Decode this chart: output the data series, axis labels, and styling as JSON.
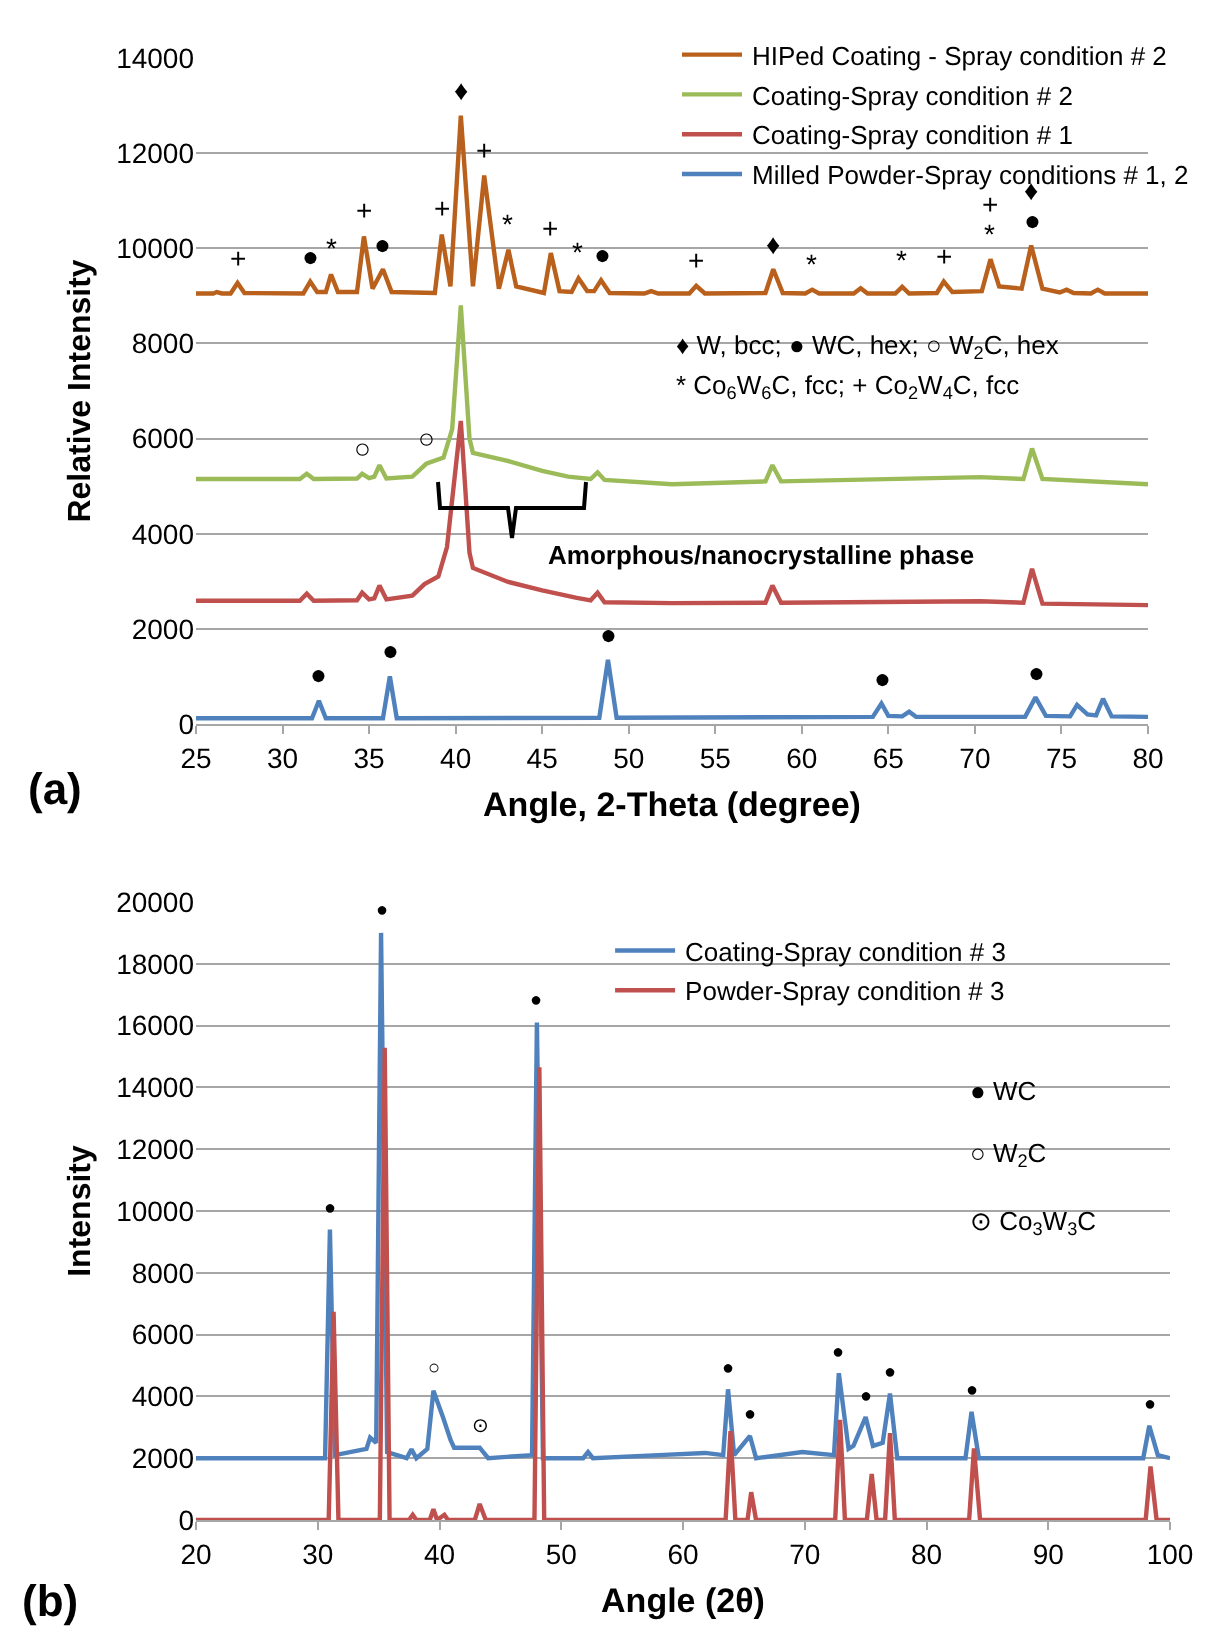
{
  "chart_data": [
    {
      "type": "line",
      "xlabel": "Angle, 2-Theta (degree)",
      "ylabel": "Relative Intensity",
      "xlim": [
        25,
        80
      ],
      "xticks": [
        25,
        30,
        35,
        40,
        45,
        50,
        55,
        60,
        65,
        70,
        75,
        80
      ],
      "ylim": [
        0,
        14000
      ],
      "yticks": [
        0,
        2000,
        4000,
        6000,
        8000,
        10000,
        12000,
        14000
      ],
      "grid": "y",
      "legend": "top right",
      "marker": "none",
      "line_style": "solid",
      "series": [
        {
          "name": "HIPed Coating - Spray condition # 2",
          "color": "#b8601c",
          "x": [
            25,
            26.0,
            26.2,
            26.5,
            27.0,
            27.4,
            27.8,
            31.2,
            31.6,
            32.0,
            32.5,
            32.8,
            33.2,
            34.3,
            34.7,
            35.2,
            35.8,
            36.3,
            38.8,
            39.2,
            39.7,
            40.3,
            41.0,
            41.65,
            42.5,
            43.05,
            43.5,
            45.1,
            45.5,
            46.0,
            46.7,
            47.1,
            47.6,
            48.0,
            48.4,
            48.9,
            50.9,
            51.3,
            51.7,
            53.5,
            53.9,
            54.4,
            57.9,
            58.35,
            58.9,
            60.2,
            60.6,
            61.0,
            63.0,
            63.4,
            63.8,
            65.4,
            65.8,
            66.2,
            67.8,
            68.2,
            68.7,
            70.4,
            70.9,
            71.4,
            72.7,
            73.25,
            73.9,
            74.9,
            75.3,
            75.7,
            76.7,
            77.1,
            77.5,
            80
          ],
          "values": [
            9050,
            9050,
            9080,
            9050,
            9050,
            9270,
            9060,
            9050,
            9300,
            9080,
            9080,
            9450,
            9080,
            9080,
            10250,
            9150,
            9560,
            9080,
            9060,
            10290,
            9200,
            12790,
            9200,
            11530,
            9150,
            9970,
            9200,
            9060,
            9900,
            9100,
            9080,
            9370,
            9100,
            9100,
            9330,
            9060,
            9050,
            9100,
            9050,
            9050,
            9210,
            9050,
            9060,
            9560,
            9060,
            9050,
            9130,
            9050,
            9050,
            9160,
            9050,
            9050,
            9190,
            9050,
            9060,
            9300,
            9080,
            9100,
            9770,
            9200,
            9150,
            10060,
            9150,
            9070,
            9130,
            9060,
            9050,
            9130,
            9050,
            9050
          ]
        },
        {
          "name": "Coating-Spray condition # 2",
          "color": "#9bbb59",
          "x": [
            25,
            31.0,
            31.4,
            31.8,
            34.3,
            34.6,
            35.0,
            35.3,
            35.6,
            36.0,
            37.5,
            38.3,
            39.3,
            39.8,
            40.3,
            40.8,
            41.0,
            43.0,
            45.0,
            46.5,
            47.8,
            48.2,
            48.6,
            52.5,
            57.9,
            58.3,
            58.8,
            70.3,
            72.8,
            73.3,
            73.9,
            80
          ],
          "values": [
            5150,
            5150,
            5260,
            5150,
            5160,
            5260,
            5170,
            5200,
            5440,
            5160,
            5200,
            5470,
            5600,
            6200,
            8800,
            6000,
            5700,
            5530,
            5320,
            5200,
            5150,
            5290,
            5130,
            5040,
            5100,
            5440,
            5100,
            5190,
            5150,
            5790,
            5150,
            5040
          ]
        },
        {
          "name": "Coating-Spray condition # 1",
          "color": "#c0504d",
          "x": [
            25,
            31.0,
            31.4,
            31.8,
            34.3,
            34.6,
            35.0,
            35.3,
            35.6,
            36.0,
            37.5,
            38.2,
            39.0,
            39.5,
            40.3,
            40.8,
            41.0,
            43.0,
            45.0,
            47.0,
            47.8,
            48.2,
            48.6,
            52.5,
            57.9,
            58.3,
            58.8,
            70.3,
            72.8,
            73.3,
            73.9,
            80
          ],
          "values": [
            2590,
            2590,
            2740,
            2590,
            2600,
            2760,
            2620,
            2640,
            2910,
            2620,
            2700,
            2940,
            3100,
            3720,
            6370,
            3600,
            3280,
            2990,
            2810,
            2650,
            2600,
            2760,
            2560,
            2540,
            2550,
            2910,
            2550,
            2580,
            2550,
            3260,
            2530,
            2500
          ]
        },
        {
          "name": "Milled Powder-Spray conditions # 1, 2",
          "color": "#4f81bd",
          "x": [
            25,
            31.7,
            32.1,
            32.5,
            35.8,
            36.2,
            36.6,
            48.3,
            48.8,
            49.3,
            64.1,
            64.6,
            65.0,
            65.8,
            66.2,
            66.6,
            72.9,
            73.5,
            74.1,
            75.5,
            75.9,
            76.5,
            77.0,
            77.4,
            77.9,
            80
          ],
          "values": [
            120,
            120,
            490,
            120,
            120,
            1000,
            120,
            130,
            1350,
            130,
            150,
            430,
            170,
            160,
            260,
            150,
            150,
            560,
            170,
            160,
            400,
            200,
            180,
            530,
            160,
            150
          ]
        }
      ],
      "annotations": [
        "(a)",
        "♦ W, bcc; ● WC, hex; ○ W$_{2}$C, hex",
        "* Co$_{6}$W$_{6}$C, fcc; + Co$_{2}$W$_{4}$C, fcc",
        "Amorphous/nanocrystalline phase",
        {
          "text": "+",
          "x": 27.4,
          "y": 9270
        },
        {
          "text": "●",
          "x": 31.6,
          "y": 9300
        },
        {
          "text": "*",
          "x": 32.8,
          "y": 9450
        },
        {
          "text": "+",
          "x": 34.7,
          "y": 10250
        },
        {
          "text": "●",
          "x": 35.8,
          "y": 9560
        },
        {
          "text": "+",
          "x": 39.2,
          "y": 10290
        },
        {
          "text": "♦",
          "x": 40.3,
          "y": 12790
        },
        {
          "text": "+",
          "x": 41.65,
          "y": 11530
        },
        {
          "text": "*",
          "x": 43.05,
          "y": 9970
        },
        {
          "text": "+",
          "x": 45.5,
          "y": 9900
        },
        {
          "text": "*",
          "x": 47.1,
          "y": 9370
        },
        {
          "text": "●",
          "x": 48.4,
          "y": 9330
        },
        {
          "text": "+",
          "x": 53.9,
          "y": 9210
        },
        {
          "text": "♦",
          "x": 58.35,
          "y": 9560
        },
        {
          "text": "*",
          "x": 60.6,
          "y": 9130
        },
        {
          "text": "*",
          "x": 65.8,
          "y": 9190
        },
        {
          "text": "+",
          "x": 68.2,
          "y": 9300
        },
        {
          "text": "*",
          "x": 70.9,
          "y": 9770
        },
        {
          "text": "+",
          "x": 70.9,
          "y": 9770
        },
        {
          "text": "●",
          "x": 73.25,
          "y": 10060
        },
        {
          "text": "♦",
          "x": 73.25,
          "y": 10060
        },
        {
          "text": "○",
          "x": 34.6,
          "y": 5260
        },
        {
          "text": "○",
          "x": 38.3,
          "y": 5470
        },
        {
          "text": "●",
          "x": 32.1,
          "y": 490
        },
        {
          "text": "●",
          "x": 36.2,
          "y": 1000
        },
        {
          "text": "●",
          "x": 48.8,
          "y": 1350
        },
        {
          "text": "●",
          "x": 64.6,
          "y": 430
        },
        {
          "text": "●",
          "x": 73.5,
          "y": 560
        }
      ]
    },
    {
      "type": "line",
      "xlabel": "Angle (2θ)",
      "ylabel": "Intensity",
      "xlim": [
        20,
        100
      ],
      "xticks": [
        20,
        30,
        40,
        50,
        60,
        70,
        80,
        90,
        100
      ],
      "ylim": [
        0,
        20000
      ],
      "yticks": [
        0,
        2000,
        4000,
        6000,
        8000,
        10000,
        12000,
        14000,
        16000,
        18000,
        20000
      ],
      "grid": "y",
      "legend": "top",
      "marker": "none",
      "line_style": "solid",
      "series": [
        {
          "name": "Coating-Spray condition # 3",
          "color": "#4f81bd",
          "x": [
            20,
            30.6,
            31.0,
            31.4,
            34.0,
            34.3,
            34.8,
            35.2,
            35.7,
            37.3,
            37.7,
            38.1,
            39.0,
            39.5,
            40.3,
            40.9,
            41.2,
            43.3,
            44.0,
            47.6,
            48.0,
            48.5,
            51.8,
            52.2,
            52.6,
            58.0,
            61.8,
            63.3,
            63.7,
            64.2,
            65.5,
            66.0,
            69.8,
            72.4,
            72.8,
            73.6,
            74.0,
            75.0,
            75.6,
            76.4,
            77.0,
            77.6,
            83.2,
            83.7,
            84.3,
            97.8,
            98.3,
            99.0,
            100
          ],
          "values": [
            2000,
            2000,
            9400,
            2100,
            2300,
            2670,
            2500,
            19000,
            2200,
            2000,
            2290,
            2000,
            2300,
            4180,
            3310,
            2600,
            2340,
            2340,
            2000,
            2100,
            16100,
            2000,
            2000,
            2200,
            2000,
            2100,
            2170,
            2100,
            4230,
            2100,
            2720,
            2000,
            2200,
            2100,
            4750,
            2300,
            2400,
            3330,
            2400,
            2500,
            4090,
            2000,
            2000,
            3500,
            2000,
            2000,
            3050,
            2100,
            2000
          ]
        },
        {
          "name": "Powder-Spray condition # 3",
          "color": "#c0504d",
          "x": [
            20,
            30.9,
            31.3,
            31.7,
            35.1,
            35.5,
            35.9,
            37.5,
            37.8,
            38.1,
            39.2,
            39.5,
            39.8,
            40.4,
            40.7,
            42.9,
            43.3,
            43.8,
            47.8,
            48.2,
            48.6,
            63.5,
            63.9,
            64.3,
            65.3,
            65.6,
            66.0,
            72.5,
            72.9,
            73.3,
            75.1,
            75.5,
            75.9,
            76.6,
            77.0,
            77.4,
            83.5,
            83.9,
            84.4,
            98.0,
            98.4,
            98.9,
            100
          ],
          "values": [
            0,
            0,
            6740,
            0,
            0,
            15280,
            0,
            0,
            170,
            0,
            0,
            350,
            0,
            170,
            0,
            0,
            520,
            0,
            0,
            14650,
            0,
            0,
            2880,
            0,
            0,
            900,
            0,
            0,
            3240,
            0,
            0,
            1490,
            0,
            0,
            2810,
            0,
            0,
            2320,
            0,
            0,
            1730,
            0,
            0
          ]
        }
      ],
      "annotations": [
        "(b)",
        "● WC",
        "○ W$_{2}$C",
        "⊙ Co$_{3}$W$_{3}$C",
        {
          "text": "●",
          "x": 31.0,
          "y": 9400
        },
        {
          "text": "●",
          "x": 35.2,
          "y": 19000
        },
        {
          "text": "●",
          "x": 48.0,
          "y": 16100
        },
        {
          "text": "○",
          "x": 39.5,
          "y": 4180
        },
        {
          "text": "⊙",
          "x": 43.3,
          "y": 2340
        },
        {
          "text": "●",
          "x": 63.7,
          "y": 4230
        },
        {
          "text": "●",
          "x": 65.5,
          "y": 2720
        },
        {
          "text": "●",
          "x": 72.8,
          "y": 4750
        },
        {
          "text": "●",
          "x": 75.0,
          "y": 3330
        },
        {
          "text": "●",
          "x": 77.0,
          "y": 4090
        },
        {
          "text": "●",
          "x": 83.7,
          "y": 3500
        },
        {
          "text": "●",
          "x": 98.3,
          "y": 3050
        }
      ]
    }
  ]
}
